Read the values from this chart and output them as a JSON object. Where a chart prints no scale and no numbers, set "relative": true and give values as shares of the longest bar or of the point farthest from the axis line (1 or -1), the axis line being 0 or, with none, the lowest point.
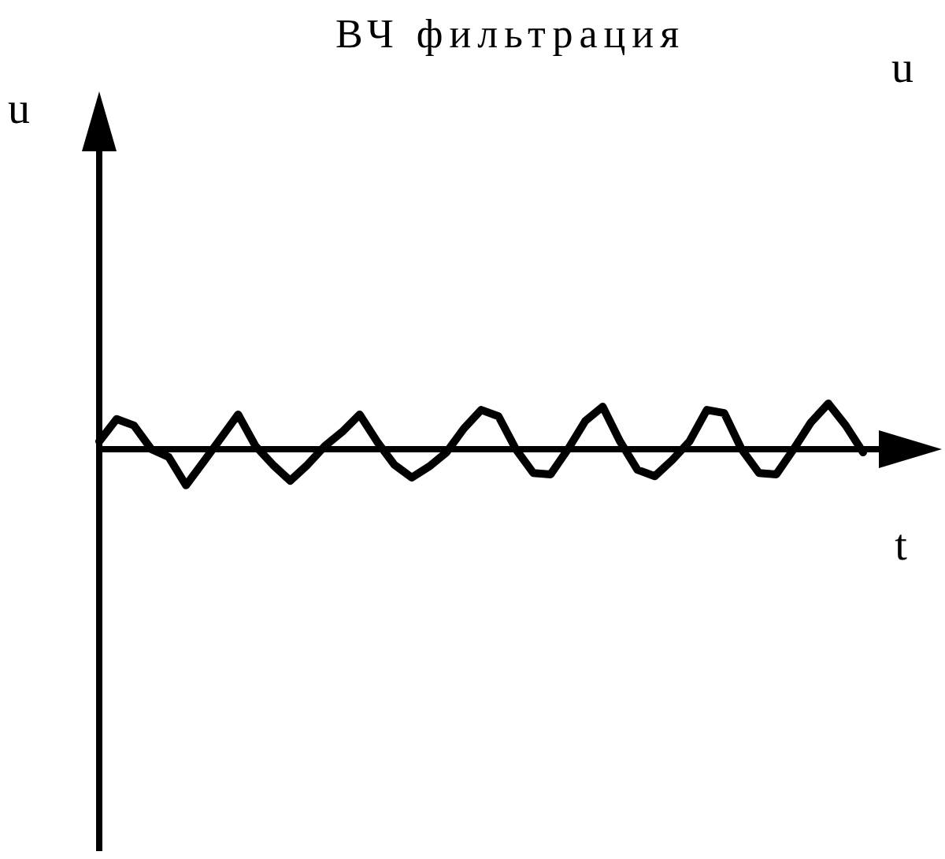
{
  "chart_data": {
    "type": "line",
    "title": "ВЧ фильтрация",
    "xlabel": "t",
    "annotations": [
      "u",
      "u"
    ],
    "relative": true,
    "color": "#000000",
    "categories": [
      null,
      null,
      null,
      null,
      null,
      null,
      null,
      null,
      null,
      null,
      null,
      null,
      null,
      null,
      null,
      null,
      null,
      null,
      null,
      null,
      null,
      null,
      null,
      null,
      null,
      null,
      null,
      null,
      null,
      null,
      null,
      null,
      null,
      null,
      null,
      null,
      null,
      null,
      null,
      null,
      null,
      null,
      null,
      null,
      null
    ],
    "values": [
      0.17,
      0.66,
      0.52,
      0,
      -0.17,
      -0.79,
      -0.28,
      0.24,
      0.76,
      0.07,
      -0.34,
      -0.69,
      -0.34,
      0.07,
      0.38,
      0.76,
      0.17,
      -0.34,
      -0.62,
      -0.38,
      -0.07,
      0.45,
      0.86,
      0.72,
      0,
      -0.52,
      -0.55,
      0,
      0.62,
      0.93,
      0.17,
      -0.45,
      -0.59,
      -0.24,
      0.17,
      0.86,
      0.79,
      0,
      -0.52,
      -0.55,
      0,
      0.59,
      1,
      0.52,
      -0.07
    ]
  }
}
